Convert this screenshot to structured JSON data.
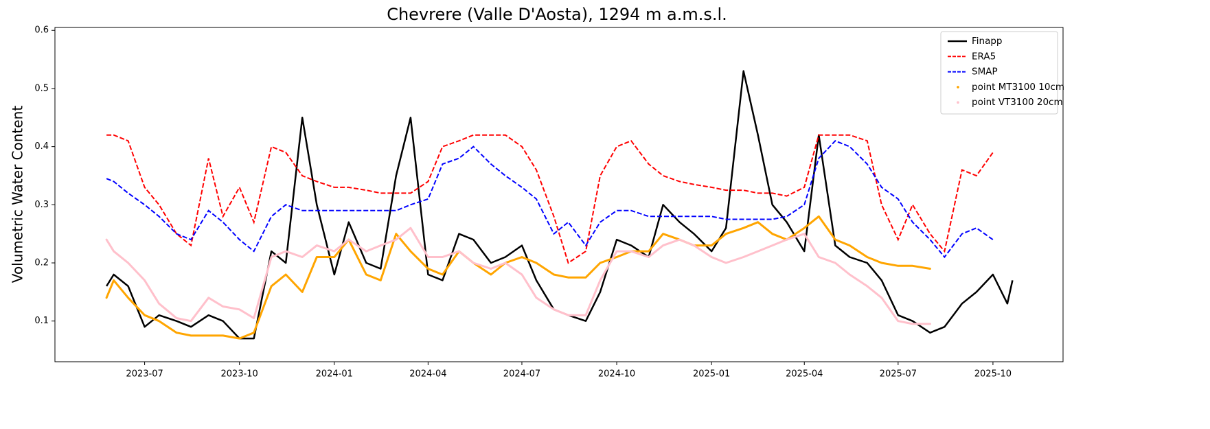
{
  "chart_data": {
    "type": "line",
    "title": "Chevrere (Valle D'Aosta), 1294 m a.m.s.l.",
    "ylabel": "Volumetric Water Content",
    "xlim": [
      "2023-04-05",
      "2025-12-08"
    ],
    "ylim": [
      0.03,
      0.605
    ],
    "yticks": [
      0.1,
      0.2,
      0.3,
      0.4,
      0.5,
      0.6
    ],
    "xticks": [
      {
        "value": "2023-07-01",
        "label": "2023-07"
      },
      {
        "value": "2023-10-01",
        "label": "2023-10"
      },
      {
        "value": "2024-01-01",
        "label": "2024-01"
      },
      {
        "value": "2024-04-01",
        "label": "2024-04"
      },
      {
        "value": "2024-07-01",
        "label": "2024-07"
      },
      {
        "value": "2024-10-01",
        "label": "2024-10"
      },
      {
        "value": "2025-01-01",
        "label": "2025-01"
      },
      {
        "value": "2025-04-01",
        "label": "2025-04"
      },
      {
        "value": "2025-07-01",
        "label": "2025-07"
      },
      {
        "value": "2025-10-01",
        "label": "2025-10"
      }
    ],
    "grid": false,
    "legend": "upper right",
    "x": [
      "2023-05-25",
      "2023-06-01",
      "2023-06-15",
      "2023-07-01",
      "2023-07-15",
      "2023-08-01",
      "2023-08-15",
      "2023-09-01",
      "2023-09-15",
      "2023-10-01",
      "2023-10-15",
      "2023-11-01",
      "2023-11-15",
      "2023-12-01",
      "2023-12-15",
      "2024-01-01",
      "2024-01-15",
      "2024-02-01",
      "2024-02-15",
      "2024-03-01",
      "2024-03-15",
      "2024-04-01",
      "2024-04-15",
      "2024-05-01",
      "2024-05-15",
      "2024-06-01",
      "2024-06-15",
      "2024-07-01",
      "2024-07-15",
      "2024-08-01",
      "2024-08-15",
      "2024-09-01",
      "2024-09-15",
      "2024-10-01",
      "2024-10-15",
      "2024-11-01",
      "2024-11-15",
      "2024-12-01",
      "2024-12-15",
      "2025-01-01",
      "2025-01-15",
      "2025-02-01",
      "2025-02-15",
      "2025-03-01",
      "2025-03-15",
      "2025-04-01",
      "2025-04-15",
      "2025-05-01",
      "2025-05-15",
      "2025-06-01",
      "2025-06-15",
      "2025-07-01",
      "2025-07-15",
      "2025-08-01",
      "2025-08-15",
      "2025-09-01",
      "2025-09-15",
      "2025-10-01",
      "2025-10-15",
      "2025-10-20"
    ],
    "series": [
      {
        "name": "Finapp",
        "color": "#000000",
        "style": "solid",
        "values": [
          0.16,
          0.18,
          0.16,
          0.09,
          0.11,
          0.1,
          0.09,
          0.11,
          0.1,
          0.07,
          0.07,
          0.22,
          0.2,
          0.45,
          0.3,
          0.18,
          0.27,
          0.2,
          0.19,
          0.35,
          0.45,
          0.18,
          0.17,
          0.25,
          0.24,
          0.2,
          0.21,
          0.23,
          0.17,
          0.12,
          0.11,
          0.1,
          0.15,
          0.24,
          0.23,
          0.21,
          0.3,
          0.27,
          0.25,
          0.22,
          0.26,
          0.53,
          0.42,
          0.3,
          0.27,
          0.22,
          0.42,
          0.23,
          0.21,
          0.2,
          0.17,
          0.11,
          0.1,
          0.08,
          0.09,
          0.13,
          0.15,
          0.18,
          0.13,
          0.17
        ]
      },
      {
        "name": "ERA5",
        "color": "#ff0000",
        "style": "dashed",
        "values": [
          0.42,
          0.42,
          0.41,
          0.33,
          0.3,
          0.25,
          0.23,
          0.38,
          0.28,
          0.33,
          0.27,
          0.4,
          0.39,
          0.35,
          0.34,
          0.33,
          0.33,
          0.325,
          0.32,
          0.32,
          0.32,
          0.34,
          0.4,
          0.41,
          0.42,
          0.42,
          0.42,
          0.4,
          0.36,
          0.28,
          0.2,
          0.22,
          0.35,
          0.4,
          0.41,
          0.37,
          0.35,
          0.34,
          0.335,
          0.33,
          0.325,
          0.325,
          0.32,
          0.32,
          0.315,
          0.33,
          0.42,
          0.42,
          0.42,
          0.41,
          0.3,
          0.24,
          0.3,
          0.25,
          0.22,
          0.36,
          0.35,
          0.39,
          null,
          null
        ]
      },
      {
        "name": "SMAP",
        "color": "#0000ff",
        "style": "dashed",
        "values": [
          0.345,
          0.34,
          0.32,
          0.3,
          0.28,
          0.25,
          0.24,
          0.29,
          0.27,
          0.24,
          0.22,
          0.28,
          0.3,
          0.29,
          0.29,
          0.29,
          0.29,
          0.29,
          0.29,
          0.29,
          0.3,
          0.31,
          0.37,
          0.38,
          0.4,
          0.37,
          0.35,
          0.33,
          0.31,
          0.25,
          0.27,
          0.23,
          0.27,
          0.29,
          0.29,
          0.28,
          0.28,
          0.28,
          0.28,
          0.28,
          0.275,
          0.275,
          0.275,
          0.275,
          0.28,
          0.3,
          0.38,
          0.41,
          0.4,
          0.37,
          0.33,
          0.31,
          0.27,
          0.24,
          0.21,
          0.25,
          0.26,
          0.24,
          null,
          null
        ]
      },
      {
        "name": "point MT3100 10cm",
        "color": "#ffa500",
        "style": "points",
        "values": [
          0.14,
          0.17,
          0.14,
          0.11,
          0.1,
          0.08,
          0.075,
          0.075,
          0.075,
          0.07,
          0.08,
          0.16,
          0.18,
          0.15,
          0.21,
          0.21,
          0.24,
          0.18,
          0.17,
          0.25,
          0.22,
          0.19,
          0.18,
          0.22,
          0.2,
          0.18,
          0.2,
          0.21,
          0.2,
          0.18,
          0.175,
          0.175,
          0.2,
          0.21,
          0.22,
          0.22,
          0.25,
          0.24,
          0.23,
          0.23,
          0.25,
          0.26,
          0.27,
          0.25,
          0.24,
          0.26,
          0.28,
          0.24,
          0.23,
          0.21,
          0.2,
          0.195,
          0.195,
          0.19,
          null,
          null,
          null,
          null,
          null,
          null
        ]
      },
      {
        "name": "point VT3100 20cm",
        "color": "#ffc0cb",
        "style": "points",
        "values": [
          0.24,
          0.22,
          0.2,
          0.17,
          0.13,
          0.105,
          0.1,
          0.14,
          0.125,
          0.12,
          0.105,
          0.21,
          0.22,
          0.21,
          0.23,
          0.22,
          0.24,
          0.22,
          0.23,
          0.24,
          0.26,
          0.21,
          0.21,
          0.22,
          0.2,
          0.19,
          0.2,
          0.18,
          0.14,
          0.12,
          0.11,
          0.11,
          0.17,
          0.22,
          0.22,
          0.21,
          0.23,
          0.24,
          0.23,
          0.21,
          0.2,
          0.21,
          0.22,
          0.23,
          0.24,
          0.25,
          0.21,
          0.2,
          0.18,
          0.16,
          0.14,
          0.1,
          0.095,
          0.095,
          null,
          null,
          null,
          null,
          null,
          null
        ]
      }
    ]
  }
}
